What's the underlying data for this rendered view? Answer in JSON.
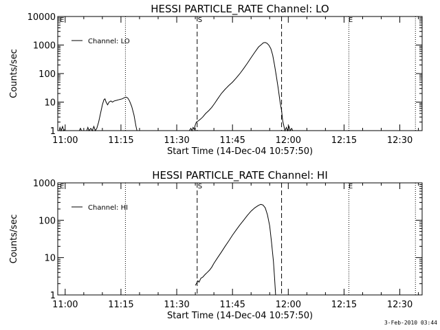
{
  "timestamp": "3-Feb-2010 03:44",
  "chart_data": [
    {
      "type": "line",
      "title": "HESSI PARTICLE_RATE Channel: LO",
      "xlabel": "Start Time (14-Dec-04 10:57:50)",
      "ylabel": "Counts/sec",
      "y_scale": "log",
      "ylim": [
        1,
        10000
      ],
      "x_unit": "minutes since 11:00",
      "xlim": [
        -2,
        96
      ],
      "x_tick_labels": [
        "11:00",
        "11:15",
        "11:30",
        "11:45",
        "12:00",
        "12:15",
        "12:30"
      ],
      "x_tick_values": [
        0,
        15,
        30,
        45,
        60,
        75,
        90
      ],
      "y_tick_labels": [
        "1",
        "10",
        "100",
        "1000",
        "10000"
      ],
      "y_tick_values": [
        1,
        10,
        100,
        1000,
        10000
      ],
      "legend": {
        "label": "Channel: LO",
        "position": "top-left"
      },
      "markers": [
        {
          "label": "E",
          "x": -1.6
        },
        {
          "label": "S",
          "x": 35.5
        },
        {
          "label": "E",
          "x": 76
        }
      ],
      "dashed_lines_x": [
        35.5,
        58.2
      ],
      "dotted_lines_x": [
        16.2,
        76.3,
        94.2
      ],
      "series": [
        {
          "name": "Channel: LO",
          "segments": [
            [
              [
                -1.6,
                1
              ],
              [
                -1.4,
                1.3
              ],
              [
                -1.1,
                1
              ],
              [
                -0.7,
                1.4
              ],
              [
                -0.4,
                1
              ],
              [
                -0.1,
                1.1
              ]
            ],
            [
              [
                3.8,
                1
              ],
              [
                4.1,
                1.2
              ],
              [
                4.4,
                1
              ],
              [
                5.8,
                1
              ],
              [
                6.1,
                1.3
              ],
              [
                6.4,
                1
              ],
              [
                6.9,
                1.2
              ],
              [
                7.3,
                1
              ],
              [
                7.7,
                1.4
              ],
              [
                8.1,
                1
              ],
              [
                8.5,
                1.2
              ],
              [
                9.0,
                2
              ],
              [
                9.5,
                4
              ],
              [
                10.0,
                8
              ],
              [
                10.4,
                12
              ],
              [
                10.7,
                13
              ],
              [
                11.0,
                10
              ],
              [
                11.4,
                8
              ],
              [
                11.8,
                10
              ],
              [
                12.3,
                11
              ],
              [
                12.7,
                10
              ],
              [
                13.2,
                11
              ],
              [
                13.8,
                11.5
              ],
              [
                14.3,
                12
              ],
              [
                14.8,
                12.5
              ],
              [
                15.3,
                13
              ],
              [
                15.8,
                14
              ],
              [
                16.3,
                15
              ],
              [
                16.8,
                14
              ],
              [
                17.3,
                11
              ],
              [
                17.9,
                7
              ],
              [
                18.5,
                3.5
              ],
              [
                19.0,
                1.5
              ],
              [
                19.3,
                1
              ]
            ],
            [
              [
                33.4,
                1
              ],
              [
                33.8,
                1.2
              ],
              [
                34.1,
                1
              ],
              [
                34.4,
                1.3
              ],
              [
                34.7,
                1.1
              ],
              [
                35.0,
                1.6
              ],
              [
                35.3,
                2
              ],
              [
                35.6,
                2.1
              ],
              [
                36.0,
                2.3
              ],
              [
                36.5,
                2.6
              ],
              [
                37.0,
                3
              ],
              [
                37.8,
                4
              ],
              [
                38.6,
                5
              ],
              [
                39.4,
                6.5
              ],
              [
                40.2,
                9
              ],
              [
                41.0,
                13
              ],
              [
                42.0,
                20
              ],
              [
                43.0,
                28
              ],
              [
                44.0,
                38
              ],
              [
                45.0,
                50
              ],
              [
                46.0,
                70
              ],
              [
                47.0,
                100
              ],
              [
                48.0,
                150
              ],
              [
                49.0,
                230
              ],
              [
                50.0,
                360
              ],
              [
                51.0,
                560
              ],
              [
                52.0,
                850
              ],
              [
                52.8,
                1050
              ],
              [
                53.3,
                1200
              ],
              [
                53.8,
                1230
              ],
              [
                54.3,
                1150
              ],
              [
                54.8,
                980
              ],
              [
                55.3,
                750
              ],
              [
                55.8,
                450
              ],
              [
                56.3,
                200
              ],
              [
                56.8,
                80
              ],
              [
                57.3,
                30
              ],
              [
                57.8,
                10
              ],
              [
                58.2,
                5
              ],
              [
                58.5,
                2.2
              ],
              [
                58.8,
                1.5
              ],
              [
                59.1,
                1
              ],
              [
                59.5,
                1.3
              ],
              [
                59.8,
                1
              ],
              [
                60.2,
                1.4
              ],
              [
                60.5,
                1
              ],
              [
                60.9,
                1.2
              ],
              [
                61.2,
                1
              ]
            ]
          ]
        }
      ]
    },
    {
      "type": "line",
      "title": "HESSI PARTICLE_RATE Channel: HI",
      "xlabel": "Start Time (14-Dec-04 10:57:50)",
      "ylabel": "Counts/sec",
      "y_scale": "log",
      "ylim": [
        1,
        1000
      ],
      "x_unit": "minutes since 11:00",
      "xlim": [
        -2,
        96
      ],
      "x_tick_labels": [
        "11:00",
        "11:15",
        "11:30",
        "11:45",
        "12:00",
        "12:15",
        "12:30"
      ],
      "x_tick_values": [
        0,
        15,
        30,
        45,
        60,
        75,
        90
      ],
      "y_tick_labels": [
        "1",
        "10",
        "100",
        "1000"
      ],
      "y_tick_values": [
        1,
        10,
        100,
        1000
      ],
      "legend": {
        "label": "Channel: HI",
        "position": "top-left"
      },
      "markers": [
        {
          "label": "E",
          "x": -1.6
        },
        {
          "label": "S",
          "x": 35.5
        },
        {
          "label": "E",
          "x": 76
        }
      ],
      "dashed_lines_x": [
        35.5,
        58.2
      ],
      "dotted_lines_x": [
        16.2,
        76.3,
        94.2
      ],
      "series": [
        {
          "name": "Channel: HI",
          "segments": [
            [
              [
                35.0,
                1.8
              ],
              [
                35.4,
                2.1
              ],
              [
                35.7,
                2.4
              ],
              [
                36.0,
                2.2
              ],
              [
                36.5,
                2.8
              ],
              [
                37.0,
                3
              ],
              [
                37.6,
                3.5
              ],
              [
                38.2,
                4
              ],
              [
                38.8,
                4.6
              ],
              [
                39.4,
                5.5
              ],
              [
                40.0,
                7
              ],
              [
                41.0,
                10
              ],
              [
                42.0,
                14
              ],
              [
                43.0,
                20
              ],
              [
                44.0,
                28
              ],
              [
                45.0,
                40
              ],
              [
                46.0,
                55
              ],
              [
                47.0,
                75
              ],
              [
                48.0,
                100
              ],
              [
                49.0,
                135
              ],
              [
                50.0,
                175
              ],
              [
                51.0,
                215
              ],
              [
                52.0,
                250
              ],
              [
                52.6,
                265
              ],
              [
                53.2,
                255
              ],
              [
                53.8,
                215
              ],
              [
                54.4,
                140
              ],
              [
                55.0,
                70
              ],
              [
                55.5,
                25
              ],
              [
                56.0,
                8
              ],
              [
                56.3,
                3
              ],
              [
                56.6,
                1
              ]
            ]
          ]
        }
      ]
    }
  ]
}
